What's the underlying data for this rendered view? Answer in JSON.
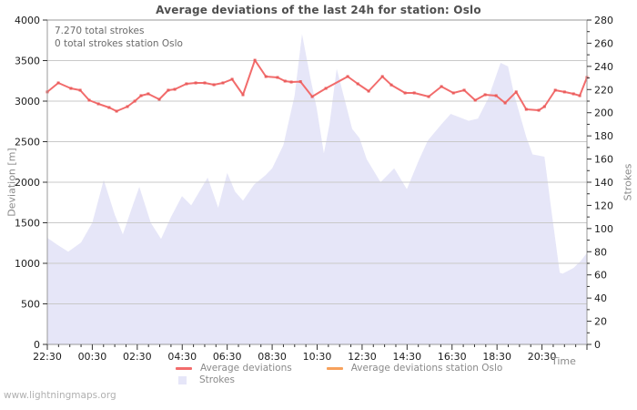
{
  "title": "Average deviations of the last 24h for station: Oslo",
  "annotation": {
    "total_strokes": "7.270 total strokes",
    "station_strokes": "0 total strokes station Oslo"
  },
  "footer": "www.lightningmaps.org",
  "colors": {
    "deviation_line": "#f26c6c",
    "deviation_marker": "#ea5e5e",
    "station_line": "#f7a15c",
    "strokes_fill": "#e6e6f8",
    "grid": "#c9c9c9",
    "spine": "#9a9a9a",
    "tick": "#333333",
    "tick_text": "#1c1c1c",
    "muted_text": "#8a8a8a"
  },
  "legend": [
    {
      "label": "Average deviations",
      "swatch": "line",
      "color": "#f26c6c"
    },
    {
      "label": "Average deviations station Oslo",
      "swatch": "line",
      "color": "#f7a15c"
    },
    {
      "label": "Strokes",
      "swatch": "square",
      "color": "#e6e6f8"
    }
  ],
  "chart_data": {
    "type": "line+area",
    "title": "Average deviations of the last 24h for station: Oslo",
    "xlabel": "Time",
    "ylabel_left": "Deviation [m]",
    "ylabel_right": "Strokes",
    "grid": "horizontal",
    "legend_position": "bottom",
    "x_range": [
      0,
      24
    ],
    "x_minor_step": 0.5,
    "x_major_step": 2,
    "x_tick_positions": [
      0,
      2,
      4,
      6,
      8,
      10,
      12,
      14,
      16,
      18,
      20,
      22
    ],
    "x_tick_labels": [
      "22:30",
      "00:30",
      "02:30",
      "04:30",
      "06:30",
      "08:30",
      "10:30",
      "12:30",
      "14:30",
      "16:30",
      "18:30",
      "20:30"
    ],
    "y_left_range": [
      0,
      4000
    ],
    "y_left_ticks": [
      0,
      500,
      1000,
      1500,
      2000,
      2500,
      3000,
      3500,
      4000
    ],
    "y_right_range": [
      0,
      280
    ],
    "y_right_minor_step": 10,
    "y_right_ticks": [
      0,
      20,
      40,
      60,
      80,
      100,
      120,
      140,
      160,
      180,
      200,
      220,
      240,
      260,
      280
    ],
    "series": [
      {
        "name": "Average deviations",
        "type": "line",
        "axis": "left",
        "color": "#f26c6c",
        "points": [
          [
            0,
            3113
          ],
          [
            0.49,
            3225
          ],
          [
            1.05,
            3157
          ],
          [
            1.46,
            3135
          ],
          [
            1.86,
            3011
          ],
          [
            2.27,
            2966
          ],
          [
            2.75,
            2921
          ],
          [
            3.08,
            2876
          ],
          [
            3.56,
            2933
          ],
          [
            3.89,
            3000
          ],
          [
            4.17,
            3067
          ],
          [
            4.49,
            3090
          ],
          [
            4.98,
            3022
          ],
          [
            5.38,
            3135
          ],
          [
            5.67,
            3146
          ],
          [
            6.19,
            3213
          ],
          [
            6.6,
            3225
          ],
          [
            7.0,
            3225
          ],
          [
            7.41,
            3202
          ],
          [
            7.81,
            3225
          ],
          [
            8.22,
            3270
          ],
          [
            8.7,
            3079
          ],
          [
            9.23,
            3505
          ],
          [
            9.72,
            3303
          ],
          [
            10.24,
            3292
          ],
          [
            10.57,
            3247
          ],
          [
            10.85,
            3236
          ],
          [
            11.26,
            3240
          ],
          [
            11.78,
            3056
          ],
          [
            12.39,
            3157
          ],
          [
            13.36,
            3303
          ],
          [
            13.81,
            3213
          ],
          [
            14.29,
            3124
          ],
          [
            14.9,
            3303
          ],
          [
            15.3,
            3200
          ],
          [
            15.91,
            3101
          ],
          [
            16.32,
            3101
          ],
          [
            16.96,
            3056
          ],
          [
            17.53,
            3180
          ],
          [
            18.06,
            3101
          ],
          [
            18.54,
            3135
          ],
          [
            19.03,
            3011
          ],
          [
            19.47,
            3079
          ],
          [
            19.96,
            3067
          ],
          [
            20.36,
            2978
          ],
          [
            20.85,
            3113
          ],
          [
            21.3,
            2899
          ],
          [
            21.86,
            2888
          ],
          [
            22.11,
            2933
          ],
          [
            22.59,
            3135
          ],
          [
            23.0,
            3113
          ],
          [
            23.4,
            3090
          ],
          [
            23.68,
            3067
          ],
          [
            24,
            3292
          ]
        ]
      },
      {
        "name": "Average deviations station Oslo",
        "type": "line",
        "axis": "left",
        "color": "#f7a15c",
        "points": []
      },
      {
        "name": "Strokes",
        "type": "area",
        "axis": "right",
        "color": "#e6e6f8",
        "points": [
          [
            0,
            92
          ],
          [
            0.45,
            86
          ],
          [
            0.93,
            80
          ],
          [
            1.5,
            88
          ],
          [
            2.0,
            105
          ],
          [
            2.51,
            142
          ],
          [
            3.0,
            112
          ],
          [
            3.36,
            95
          ],
          [
            3.8,
            120
          ],
          [
            4.09,
            136
          ],
          [
            4.6,
            105
          ],
          [
            5.06,
            91
          ],
          [
            5.5,
            110
          ],
          [
            5.99,
            128
          ],
          [
            6.4,
            120
          ],
          [
            7.13,
            144
          ],
          [
            7.6,
            118
          ],
          [
            8.0,
            148
          ],
          [
            8.35,
            132
          ],
          [
            8.7,
            124
          ],
          [
            9.2,
            138
          ],
          [
            9.7,
            146
          ],
          [
            10.0,
            152
          ],
          [
            10.5,
            172
          ],
          [
            11.0,
            215
          ],
          [
            11.33,
            268
          ],
          [
            11.7,
            230
          ],
          [
            11.98,
            204
          ],
          [
            12.3,
            165
          ],
          [
            12.55,
            190
          ],
          [
            12.87,
            238
          ],
          [
            13.56,
            186
          ],
          [
            13.89,
            178
          ],
          [
            14.2,
            160
          ],
          [
            14.82,
            140
          ],
          [
            15.43,
            152
          ],
          [
            15.99,
            134
          ],
          [
            16.5,
            158
          ],
          [
            16.92,
            176
          ],
          [
            17.53,
            190
          ],
          [
            17.94,
            199
          ],
          [
            18.74,
            193
          ],
          [
            19.15,
            195
          ],
          [
            19.6,
            212
          ],
          [
            20.16,
            243
          ],
          [
            20.49,
            240
          ],
          [
            20.77,
            215
          ],
          [
            21.3,
            179
          ],
          [
            21.58,
            164
          ],
          [
            21.86,
            163
          ],
          [
            22.11,
            162
          ],
          [
            22.39,
            120
          ],
          [
            22.79,
            62
          ],
          [
            22.92,
            61
          ],
          [
            23.4,
            66
          ],
          [
            23.72,
            72
          ],
          [
            24,
            79
          ]
        ]
      }
    ]
  }
}
